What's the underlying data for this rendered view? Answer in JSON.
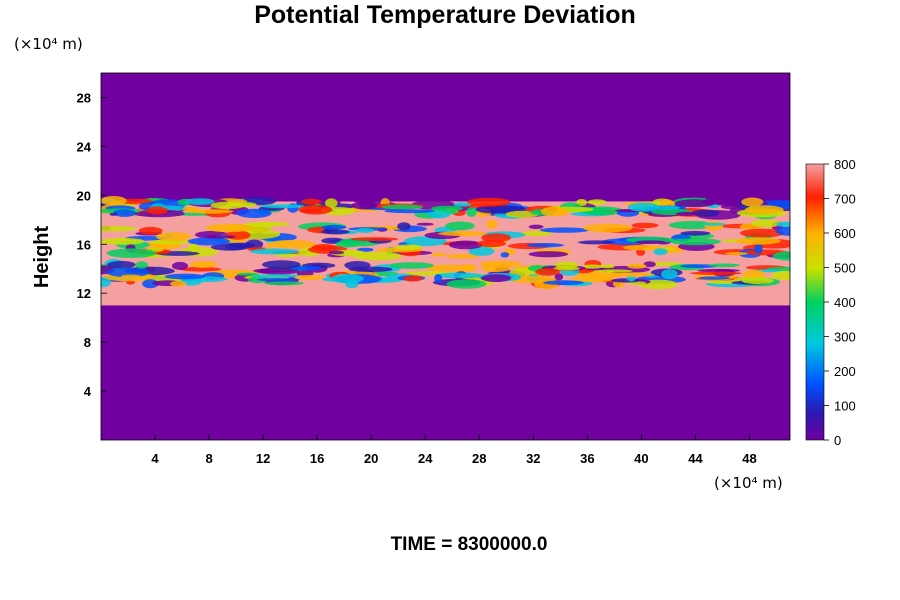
{
  "chart_data": {
    "type": "heatmap",
    "title": "Potential Temperature Deviation",
    "ylabel": "Height",
    "x_unit_label": "(×10⁴ m)",
    "y_unit_label": "(×10⁴ m)",
    "xlim": [
      0,
      51
    ],
    "ylim": [
      0,
      30
    ],
    "x_ticks": [
      "4",
      "8",
      "12",
      "16",
      "20",
      "24",
      "28",
      "32",
      "36",
      "40",
      "44",
      "48"
    ],
    "y_ticks": [
      "4",
      "8",
      "12",
      "16",
      "20",
      "24",
      "28"
    ],
    "colorbar": {
      "min": 0,
      "max": 800,
      "ticks": [
        "0",
        "100",
        "200",
        "300",
        "400",
        "500",
        "600",
        "700",
        "800"
      ],
      "colors": [
        "#7000a0",
        "#2a1ab0",
        "#0050ff",
        "#00c8e0",
        "#00d060",
        "#c8e000",
        "#ffb000",
        "#ff2000",
        "#f4a0a0"
      ]
    },
    "field_summary": {
      "background_value": 0,
      "saturated_band": {
        "height_range": [
          11,
          19.5
        ],
        "value": 800
      },
      "turbulent_layers": [
        {
          "height_range": [
            18.4,
            19.6
          ]
        },
        {
          "height_range": [
            15.0,
            17.7
          ]
        },
        {
          "height_range": [
            12.7,
            14.4
          ]
        }
      ]
    },
    "footer": "TIME = 8300000.0"
  }
}
